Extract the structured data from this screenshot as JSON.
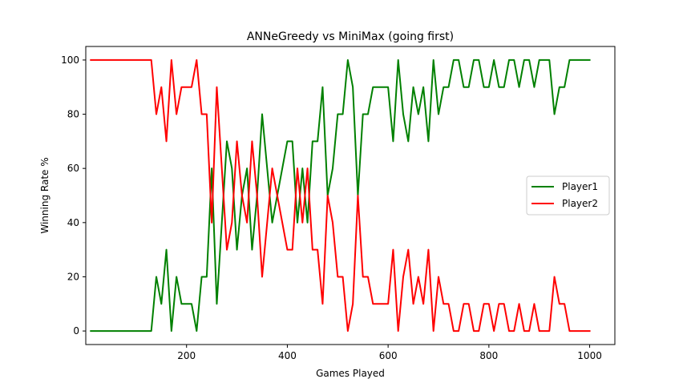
{
  "chart_data": {
    "type": "line",
    "title": "ANNeGreedy vs MiniMax (going first)",
    "xlabel": "Games Played",
    "ylabel": "Winning Rate %",
    "xlim": [
      0,
      1050
    ],
    "ylim": [
      -5,
      105
    ],
    "xticks": [
      200,
      400,
      600,
      800,
      1000
    ],
    "yticks": [
      0,
      20,
      40,
      60,
      80,
      100
    ],
    "grid": false,
    "legend_position": "right",
    "x": [
      10,
      20,
      30,
      40,
      50,
      60,
      70,
      80,
      90,
      100,
      110,
      120,
      130,
      140,
      150,
      160,
      170,
      180,
      190,
      200,
      210,
      220,
      230,
      240,
      250,
      260,
      270,
      280,
      290,
      300,
      310,
      320,
      330,
      340,
      350,
      360,
      370,
      380,
      390,
      400,
      410,
      420,
      430,
      440,
      450,
      460,
      470,
      480,
      490,
      500,
      510,
      520,
      530,
      540,
      550,
      560,
      570,
      580,
      590,
      600,
      610,
      620,
      630,
      640,
      650,
      660,
      670,
      680,
      690,
      700,
      710,
      720,
      730,
      740,
      750,
      760,
      770,
      780,
      790,
      800,
      810,
      820,
      830,
      840,
      850,
      860,
      870,
      880,
      890,
      900,
      910,
      920,
      930,
      940,
      950,
      960,
      970,
      980,
      990,
      1000
    ],
    "series": [
      {
        "name": "Player1",
        "color": "#008000",
        "values": [
          0,
          0,
          0,
          0,
          0,
          0,
          0,
          0,
          0,
          0,
          0,
          0,
          0,
          20,
          10,
          30,
          0,
          20,
          10,
          10,
          10,
          0,
          20,
          20,
          60,
          10,
          40,
          70,
          60,
          30,
          50,
          60,
          30,
          50,
          80,
          60,
          40,
          50,
          60,
          70,
          70,
          40,
          60,
          40,
          70,
          70,
          90,
          50,
          60,
          80,
          80,
          100,
          90,
          50,
          80,
          80,
          90,
          90,
          90,
          90,
          70,
          100,
          80,
          70,
          90,
          80,
          90,
          70,
          100,
          80,
          90,
          90,
          100,
          100,
          90,
          90,
          100,
          100,
          90,
          90,
          100,
          90,
          90,
          100,
          100,
          90,
          100,
          100,
          90,
          100,
          100,
          100,
          80,
          90,
          90,
          100,
          100,
          100,
          100,
          100
        ]
      },
      {
        "name": "Player2",
        "color": "#ff0000",
        "values": [
          100,
          100,
          100,
          100,
          100,
          100,
          100,
          100,
          100,
          100,
          100,
          100,
          100,
          80,
          90,
          70,
          100,
          80,
          90,
          90,
          90,
          100,
          80,
          80,
          40,
          90,
          60,
          30,
          40,
          70,
          50,
          40,
          70,
          50,
          20,
          40,
          60,
          50,
          40,
          30,
          30,
          60,
          40,
          60,
          30,
          30,
          10,
          50,
          40,
          20,
          20,
          0,
          10,
          50,
          20,
          20,
          10,
          10,
          10,
          10,
          30,
          0,
          20,
          30,
          10,
          20,
          10,
          30,
          0,
          20,
          10,
          10,
          0,
          0,
          10,
          10,
          0,
          0,
          10,
          10,
          0,
          10,
          10,
          0,
          0,
          10,
          0,
          0,
          10,
          0,
          0,
          0,
          20,
          10,
          10,
          0,
          0,
          0,
          0,
          0
        ]
      }
    ]
  },
  "colors": {
    "axis": "#000000",
    "background": "#ffffff"
  }
}
